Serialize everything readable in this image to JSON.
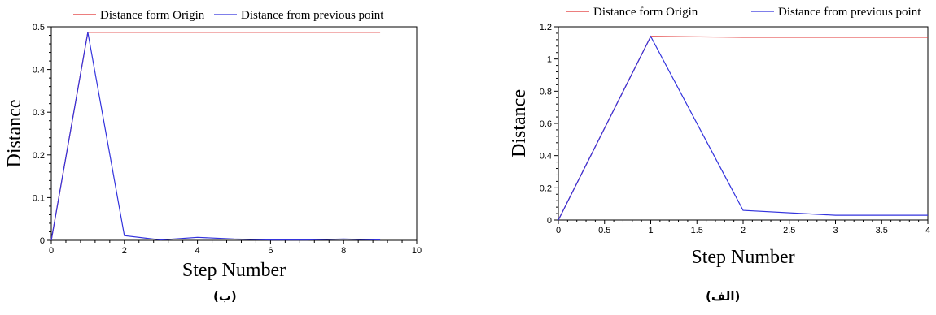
{
  "chart_data": [
    {
      "type": "line",
      "title": "",
      "xlabel": "Step Number",
      "ylabel": "Distance",
      "xlim": [
        0,
        10
      ],
      "ylim": [
        0,
        0.5
      ],
      "x_ticks_major": [
        0,
        2,
        4,
        6,
        8,
        10
      ],
      "x_tick_labels": [
        "0",
        "2",
        "4",
        "6",
        "8",
        "10"
      ],
      "y_ticks": [
        0,
        0.1,
        0.2,
        0.3,
        0.4,
        0.5
      ],
      "y_tick_labels": [
        "0",
        "0.1",
        "0.2",
        "0.3",
        "0.4",
        "0.5"
      ],
      "legend_position": "top",
      "grid": false,
      "series": [
        {
          "name": "Distance form Origin",
          "color": "#e03030",
          "x": [
            0,
            1,
            2,
            3,
            4,
            5,
            6,
            7,
            8,
            9
          ],
          "values": [
            0,
            0.487,
            0.487,
            0.487,
            0.487,
            0.487,
            0.487,
            0.487,
            0.487,
            0.487
          ]
        },
        {
          "name": "Distance from previous point",
          "color": "#3333dd",
          "x": [
            0,
            1,
            2,
            3,
            4,
            5,
            6,
            7,
            8,
            9
          ],
          "values": [
            0,
            0.487,
            0.011,
            0.001,
            0.007,
            0.003,
            0.001,
            0.001,
            0.003,
            0.001
          ]
        }
      ]
    },
    {
      "type": "line",
      "title": "",
      "xlabel": "Step Number",
      "ylabel": "Distance",
      "xlim": [
        0,
        4
      ],
      "ylim": [
        0,
        1.2
      ],
      "x_ticks_major": [
        0,
        0.5,
        1,
        1.5,
        2,
        2.5,
        3,
        3.5,
        4
      ],
      "x_tick_labels": [
        "0",
        "0.5",
        "1",
        "1.5",
        "2",
        "2.5",
        "3",
        "3.5",
        "4"
      ],
      "y_ticks": [
        0,
        0.2,
        0.4,
        0.6,
        0.8,
        1,
        1.2
      ],
      "y_tick_labels": [
        "0",
        "0.2",
        "0.4",
        "0.6",
        "0.8",
        "1",
        "1.2"
      ],
      "legend_position": "top",
      "grid": false,
      "series": [
        {
          "name": "Distance form Origin",
          "color": "#e03030",
          "x": [
            0,
            1,
            2,
            3,
            4
          ],
          "values": [
            0,
            1.14,
            1.135,
            1.135,
            1.135
          ]
        },
        {
          "name": "Distance from previous point",
          "color": "#3333dd",
          "x": [
            0,
            1,
            2,
            3,
            4
          ],
          "values": [
            0,
            1.14,
            0.06,
            0.03,
            0.03
          ]
        }
      ]
    }
  ],
  "captions": {
    "left": "(ب)",
    "right": "(الف)"
  }
}
